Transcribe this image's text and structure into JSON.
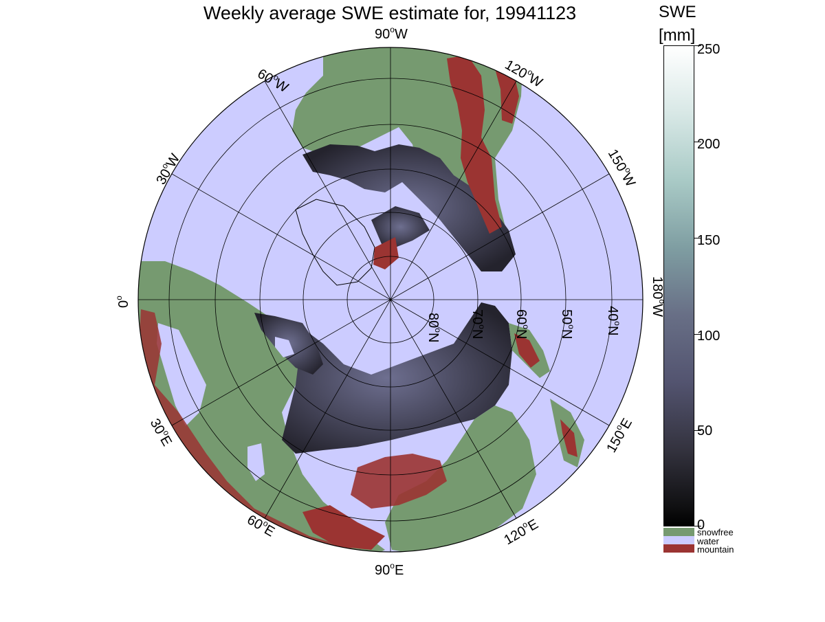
{
  "title": "Weekly average SWE estimate for, 19941123",
  "colorbar": {
    "title": "SWE",
    "unit": "[mm]",
    "ticks": [
      "250",
      "200",
      "150",
      "100",
      "50",
      "0"
    ],
    "range": [
      0,
      250
    ]
  },
  "legend": [
    {
      "label": "snowfree",
      "color": "#769a70"
    },
    {
      "label": "water",
      "color": "#ccccff"
    },
    {
      "label": "mountain",
      "color": "#9b3432"
    }
  ],
  "longitude_labels": {
    "top": "90",
    "top_dir": "W",
    "lon60w": "60",
    "lon60w_dir": "W",
    "lon30w": "30",
    "lon30w_dir": "W",
    "lon0": "0",
    "lon120w": "120",
    "lon120w_dir": "W",
    "lon150w": "150",
    "lon150w_dir": "W",
    "lon180w": "180",
    "lon180w_dir": "W",
    "lon30e": "30",
    "lon30e_dir": "E",
    "lon60e": "60",
    "lon60e_dir": "E",
    "lon90e": "90",
    "lon90e_dir": "E",
    "lon120e": "120",
    "lon120e_dir": "E",
    "lon150e": "150",
    "lon150e_dir": "E"
  },
  "latitude_labels": {
    "lat80": "80",
    "lat70": "70",
    "lat60": "60",
    "lat50": "50",
    "lat40": "40",
    "dir": "N"
  },
  "colors": {
    "water": "#ccccff",
    "snowfree": "#769a70",
    "mountain": "#9b3432",
    "snow_dark": "#1f1e27",
    "snow_mid": "#5a5b78"
  }
}
